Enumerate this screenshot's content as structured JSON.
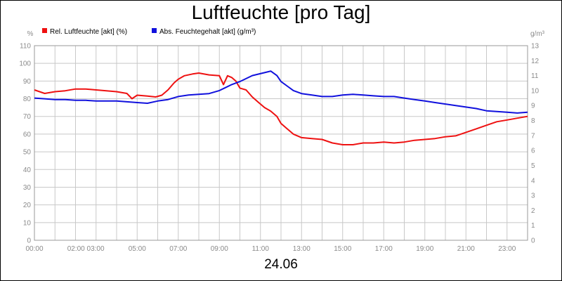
{
  "chart_data": {
    "type": "line",
    "title": "Luftfeuchte [pro Tag]",
    "xlabel": "24.06",
    "left_unit": "%",
    "right_unit": "g/m³",
    "x_ticks": [
      "00:00",
      "02:00 03:00",
      "05:00",
      "07:00",
      "09:00",
      "11:00",
      "13:00",
      "15:00",
      "17:00",
      "19:00",
      "21:00",
      "23:00"
    ],
    "x_tick_hours": [
      0,
      2.5,
      5,
      7,
      9,
      11,
      13,
      15,
      17,
      19,
      21,
      23
    ],
    "xlim": [
      0,
      24
    ],
    "ylim_left": [
      0,
      110
    ],
    "ylim_right": [
      0,
      13
    ],
    "y_ticks_left": [
      "0",
      "10",
      "20",
      "30",
      "40",
      "50",
      "60",
      "70",
      "80",
      "90",
      "100",
      "110"
    ],
    "y_ticks_right": [
      "0",
      "1",
      "2",
      "3",
      "4",
      "5",
      "6",
      "7",
      "8",
      "9",
      "10",
      "11",
      "12",
      "13"
    ],
    "grid": true,
    "legend_position": "top-left",
    "series": [
      {
        "name": "Rel. Luftfeuchte [akt] (%)",
        "color": "#ee1111",
        "axis": "left",
        "x": [
          0,
          0.25,
          0.5,
          1,
          1.5,
          2,
          2.5,
          3,
          3.5,
          4,
          4.5,
          4.75,
          5,
          5.5,
          5.9,
          6.2,
          6.5,
          6.8,
          7,
          7.3,
          7.7,
          8,
          8.5,
          9,
          9.2,
          9.4,
          9.6,
          9.8,
          10,
          10.3,
          10.6,
          10.9,
          11.2,
          11.5,
          11.8,
          12,
          12.3,
          12.6,
          13,
          13.5,
          14,
          14.5,
          15,
          15.5,
          16,
          16.5,
          17,
          17.5,
          18,
          18.5,
          19,
          19.5,
          20,
          20.5,
          21,
          21.5,
          22,
          22.5,
          23,
          23.5,
          24
        ],
        "values": [
          85,
          84,
          83,
          84,
          84.5,
          85.5,
          85.5,
          85,
          84.5,
          84,
          83,
          80,
          82,
          81.5,
          81,
          82,
          85,
          89,
          91,
          93,
          94,
          94.5,
          93.5,
          93,
          88,
          93,
          92,
          90,
          86,
          85,
          81,
          78,
          75,
          73,
          70,
          66,
          63,
          60,
          58,
          57.5,
          57,
          55,
          54,
          54,
          55,
          55,
          55.5,
          55,
          55.5,
          56.5,
          57,
          57.5,
          58.5,
          59,
          61,
          63,
          65,
          67,
          68,
          69,
          70
        ]
      },
      {
        "name": "Abs. Feuchtegehalt [akt] (g/m³)",
        "color": "#1111dd",
        "axis": "right",
        "x": [
          0,
          0.5,
          1,
          1.5,
          2,
          2.5,
          3,
          3.5,
          4,
          4.5,
          5,
          5.5,
          6,
          6.5,
          7,
          7.5,
          8,
          8.5,
          9,
          9.3,
          9.6,
          10,
          10.3,
          10.6,
          10.9,
          11.2,
          11.5,
          11.8,
          12,
          12.3,
          12.6,
          13,
          13.5,
          14,
          14.5,
          15,
          15.5,
          16,
          16.5,
          17,
          17.5,
          18,
          18.5,
          19,
          19.5,
          20,
          20.5,
          21,
          21.5,
          22,
          22.5,
          23,
          23.5,
          24
        ],
        "values": [
          9.5,
          9.45,
          9.4,
          9.4,
          9.35,
          9.35,
          9.3,
          9.3,
          9.3,
          9.25,
          9.2,
          9.15,
          9.3,
          9.4,
          9.6,
          9.7,
          9.75,
          9.8,
          10.0,
          10.2,
          10.4,
          10.6,
          10.8,
          11.0,
          11.1,
          11.2,
          11.3,
          11.0,
          10.6,
          10.3,
          10.0,
          9.8,
          9.7,
          9.6,
          9.6,
          9.7,
          9.75,
          9.7,
          9.65,
          9.6,
          9.6,
          9.5,
          9.4,
          9.3,
          9.2,
          9.1,
          9.0,
          8.9,
          8.8,
          8.65,
          8.6,
          8.55,
          8.5,
          8.55
        ]
      }
    ]
  }
}
